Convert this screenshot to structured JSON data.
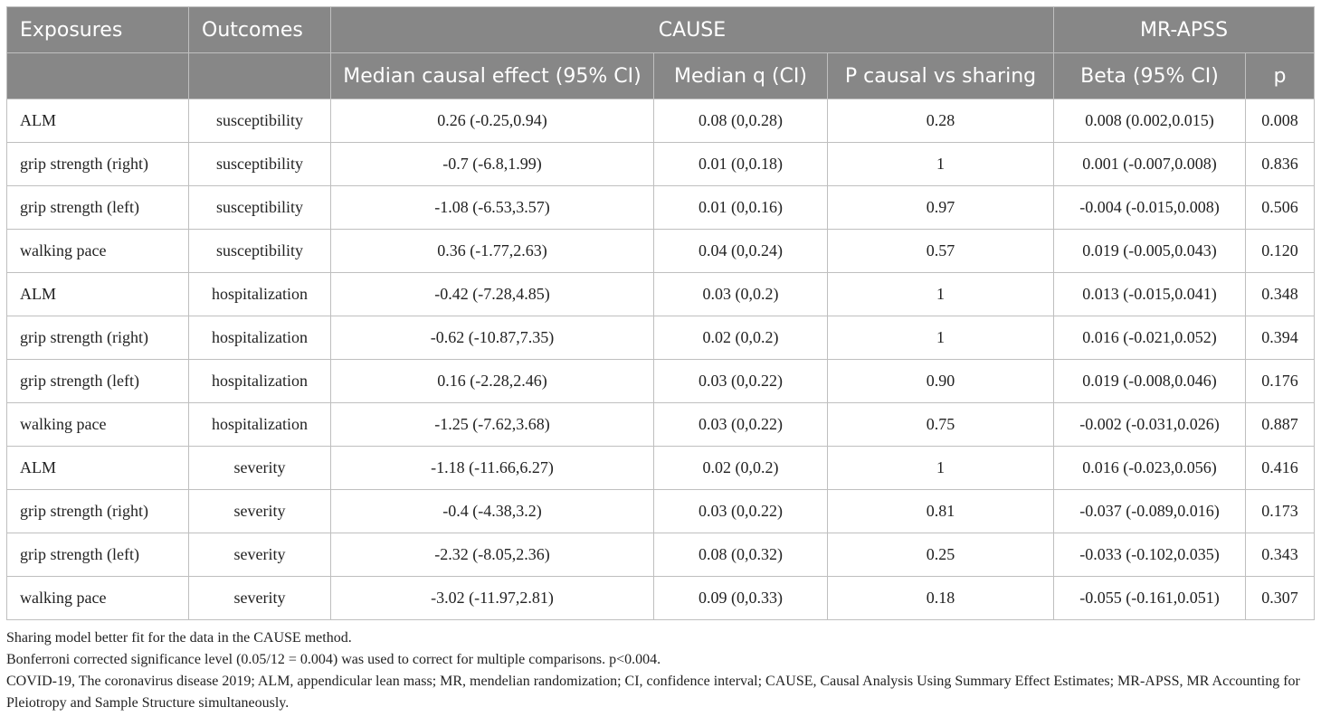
{
  "table": {
    "headers": {
      "exposures": "Exposures",
      "outcomes": "Outcomes",
      "cause": "CAUSE",
      "mrapss": "MR-APSS",
      "median_effect": "Median causal effect (95% CI)",
      "median_q": "Median q (CI)",
      "p_causal": "P causal vs sharing",
      "beta": "Beta (95% CI)",
      "p": "p"
    },
    "rows": [
      [
        "ALM",
        "susceptibility",
        "0.26 (-0.25,0.94)",
        "0.08 (0,0.28)",
        "0.28",
        "0.008 (0.002,0.015)",
        "0.008"
      ],
      [
        "grip strength (right)",
        "susceptibility",
        "-0.7 (-6.8,1.99)",
        "0.01 (0,0.18)",
        "1",
        "0.001 (-0.007,0.008)",
        "0.836"
      ],
      [
        "grip strength (left)",
        "susceptibility",
        "-1.08 (-6.53,3.57)",
        "0.01 (0,0.16)",
        "0.97",
        "-0.004 (-0.015,0.008)",
        "0.506"
      ],
      [
        "walking pace",
        "susceptibility",
        "0.36 (-1.77,2.63)",
        "0.04 (0,0.24)",
        "0.57",
        "0.019 (-0.005,0.043)",
        "0.120"
      ],
      [
        "ALM",
        "hospitalization",
        "-0.42 (-7.28,4.85)",
        "0.03 (0,0.2)",
        "1",
        "0.013 (-0.015,0.041)",
        "0.348"
      ],
      [
        "grip strength (right)",
        "hospitalization",
        "-0.62 (-10.87,7.35)",
        "0.02 (0,0.2)",
        "1",
        "0.016 (-0.021,0.052)",
        "0.394"
      ],
      [
        "grip strength (left)",
        "hospitalization",
        "0.16 (-2.28,2.46)",
        "0.03 (0,0.22)",
        "0.90",
        "0.019 (-0.008,0.046)",
        "0.176"
      ],
      [
        "walking pace",
        "hospitalization",
        "-1.25 (-7.62,3.68)",
        "0.03 (0,0.22)",
        "0.75",
        "-0.002 (-0.031,0.026)",
        "0.887"
      ],
      [
        "ALM",
        "severity",
        "-1.18 (-11.66,6.27)",
        "0.02 (0,0.2)",
        "1",
        "0.016 (-0.023,0.056)",
        "0.416"
      ],
      [
        "grip strength (right)",
        "severity",
        "-0.4 (-4.38,3.2)",
        "0.03 (0,0.22)",
        "0.81",
        "-0.037 (-0.089,0.016)",
        "0.173"
      ],
      [
        "grip strength (left)",
        "severity",
        "-2.32 (-8.05,2.36)",
        "0.08 (0,0.32)",
        "0.25",
        "-0.033 (-0.102,0.035)",
        "0.343"
      ],
      [
        "walking pace",
        "severity",
        "-3.02 (-11.97,2.81)",
        "0.09 (0,0.33)",
        "0.18",
        "-0.055 (-0.161,0.051)",
        "0.307"
      ]
    ]
  },
  "notes": [
    "Sharing model better fit for the data in the CAUSE method.",
    "Bonferroni corrected significance level (0.05/12 = 0.004) was used to correct for multiple comparisons. p<0.004.",
    "COVID-19, The coronavirus disease 2019; ALM, appendicular lean mass; MR, mendelian randomization; CI, confidence interval; CAUSE, Causal Analysis Using Summary Effect Estimates; MR-APSS, MR Accounting for Pleiotropy and Sample Structure simultaneously."
  ]
}
